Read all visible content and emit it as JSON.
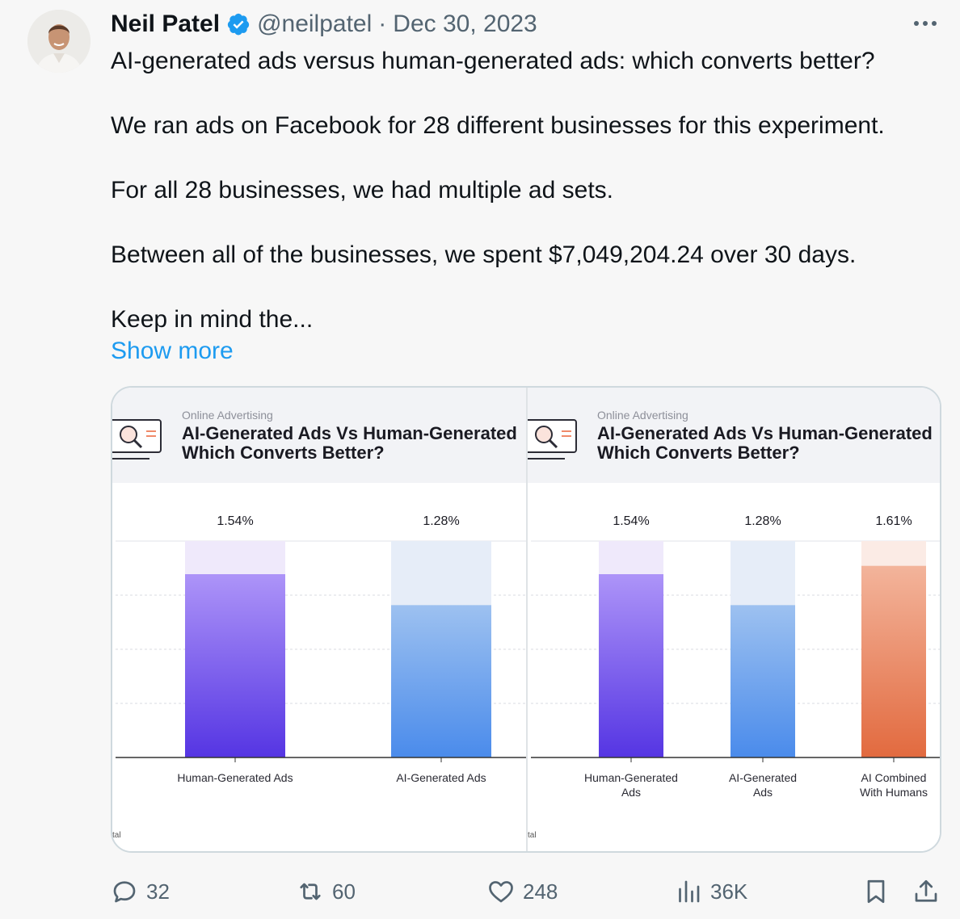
{
  "tweet": {
    "author_name": "Neil Patel",
    "handle": "@neilpatel",
    "separator": "·",
    "date": "Dec 30, 2023",
    "lines": [
      "AI-generated ads versus human-generated ads: which converts better?",
      "",
      "We ran ads on Facebook for 28 different businesses for this experiment.",
      "",
      "For all 28 businesses, we had multiple ad sets.",
      "",
      "Between all of the businesses, we spent $7,049,204.24 over 30 days.",
      "",
      "Keep in mind the..."
    ],
    "show_more": "Show more",
    "verified_color": "#1d9bf0"
  },
  "media": {
    "panel_left": {
      "kicker": "Online Advertising",
      "title_line1": "AI-Generated Ads Vs Human-Generated",
      "title_line2": "Which Converts Better?",
      "cut_label": "tal"
    },
    "panel_right": {
      "kicker": "Online Advertising",
      "title_line1": "AI-Generated Ads Vs Human-Generated",
      "title_line2": "Which Converts Better?",
      "cut_label": "tal"
    }
  },
  "chart_data": [
    {
      "type": "bar",
      "categories": [
        "Human-Generated Ads",
        "AI-Generated Ads"
      ],
      "values": [
        1.54,
        1.28
      ],
      "value_labels": [
        "1.54%",
        "1.28%"
      ],
      "ylim": [
        0,
        2.0
      ],
      "grid": true,
      "colors": [
        [
          "#ad94f8",
          "#5535e3"
        ],
        [
          "#9dc1f0",
          "#4a8beb"
        ]
      ],
      "bg_colors": [
        "#efe9fb",
        "#e6edf8"
      ]
    },
    {
      "type": "bar",
      "categories": [
        "Human-Generated Ads",
        "AI-Generated Ads",
        "AI Combined With Humans"
      ],
      "category_lines": [
        [
          "Human-Generated",
          "Ads"
        ],
        [
          "AI-Generated",
          "Ads"
        ],
        [
          "AI Combined",
          "With Humans"
        ]
      ],
      "values": [
        1.54,
        1.28,
        1.61
      ],
      "value_labels": [
        "1.54%",
        "1.28%",
        "1.61%"
      ],
      "ylim": [
        0,
        2.0
      ],
      "grid": true,
      "colors": [
        [
          "#ad94f8",
          "#5535e3"
        ],
        [
          "#9dc1f0",
          "#4a8beb"
        ],
        [
          "#f3b49b",
          "#e26a3f"
        ]
      ],
      "bg_colors": [
        "#efe9fb",
        "#e6edf8",
        "#fbebe5"
      ]
    }
  ],
  "actions": {
    "replies": "32",
    "reposts": "60",
    "likes": "248",
    "views": "36K"
  }
}
